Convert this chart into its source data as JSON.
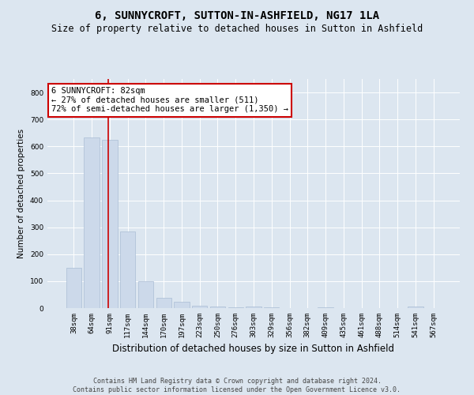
{
  "title": "6, SUNNYCROFT, SUTTON-IN-ASHFIELD, NG17 1LA",
  "subtitle": "Size of property relative to detached houses in Sutton in Ashfield",
  "xlabel": "Distribution of detached houses by size in Sutton in Ashfield",
  "ylabel": "Number of detached properties",
  "categories": [
    "38sqm",
    "64sqm",
    "91sqm",
    "117sqm",
    "144sqm",
    "170sqm",
    "197sqm",
    "223sqm",
    "250sqm",
    "276sqm",
    "303sqm",
    "329sqm",
    "356sqm",
    "382sqm",
    "409sqm",
    "435sqm",
    "461sqm",
    "488sqm",
    "514sqm",
    "541sqm",
    "567sqm"
  ],
  "values": [
    150,
    632,
    625,
    285,
    100,
    38,
    22,
    10,
    7,
    4,
    7,
    4,
    0,
    0,
    4,
    0,
    0,
    0,
    0,
    7,
    0
  ],
  "bar_color": "#ccd9ea",
  "bar_edge_color": "#aabdd4",
  "annotation_line1": "6 SUNNYCROFT: 82sqm",
  "annotation_line2": "← 27% of detached houses are smaller (511)",
  "annotation_line3": "72% of semi-detached houses are larger (1,350) →",
  "annotation_box_color": "#ffffff",
  "annotation_box_edge": "#cc0000",
  "red_line_color": "#cc0000",
  "ylim": [
    0,
    850
  ],
  "yticks": [
    0,
    100,
    200,
    300,
    400,
    500,
    600,
    700,
    800
  ],
  "background_color": "#dce6f0",
  "plot_bg_color": "#dce6f0",
  "grid_color": "#ffffff",
  "footer_text": "Contains HM Land Registry data © Crown copyright and database right 2024.\nContains public sector information licensed under the Open Government Licence v3.0.",
  "title_fontsize": 10,
  "subtitle_fontsize": 8.5,
  "xlabel_fontsize": 8.5,
  "ylabel_fontsize": 7.5,
  "tick_fontsize": 6.5,
  "annotation_fontsize": 7.5,
  "footer_fontsize": 6.0,
  "red_line_x": 1.93
}
